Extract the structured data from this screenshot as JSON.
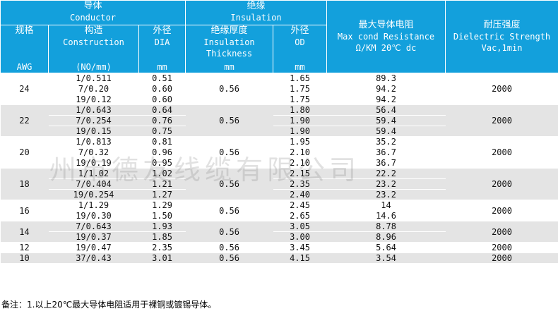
{
  "header": {
    "groups": [
      {
        "zh": "导体",
        "en": "Conductor"
      },
      {
        "zh": "绝缘",
        "en": "Insulation"
      }
    ],
    "columns": [
      {
        "zh": "规格",
        "unit": "AWG"
      },
      {
        "zh": "构造",
        "en": "Construction",
        "unit": "(NO/mm)"
      },
      {
        "zh": "外径",
        "en": "DIA",
        "unit": "mm"
      },
      {
        "zh": "绝缘厚度",
        "en": "Insulation Thickness",
        "unit": "mm"
      },
      {
        "zh": "外径",
        "en": "OD",
        "unit": "mm"
      },
      {
        "zh": "最大导体电阻",
        "en": "Max cond Resistance",
        "unit": "Ω/KM 20℃ dc"
      },
      {
        "zh": "耐压强度",
        "en": "Dielectric Strength",
        "unit": "Vac,1min"
      }
    ]
  },
  "table": {
    "groups": [
      {
        "awg": "24",
        "construction": [
          "1/0.511",
          "7/0.20",
          "19/0.12"
        ],
        "dia": [
          "0.51",
          "0.60",
          "0.60"
        ],
        "thickness": "0.56",
        "od": [
          "1.65",
          "1.75",
          "1.75"
        ],
        "resistance": [
          "89.3",
          "94.2",
          "94.2"
        ],
        "voltage": "2000"
      },
      {
        "awg": "22",
        "construction": [
          "1/0.643",
          "7/0.254",
          "19/0.15"
        ],
        "dia": [
          "0.64",
          "0.76",
          "0.75"
        ],
        "thickness": "0.56",
        "od": [
          "1.80",
          "1.90",
          "1.90"
        ],
        "resistance": [
          "56.4",
          "59.4",
          "59.4"
        ],
        "voltage": "2000"
      },
      {
        "awg": "20",
        "construction": [
          "1/0.813",
          "7/0.32",
          "19/0.19"
        ],
        "dia": [
          "0.81",
          "0.96",
          "0.95"
        ],
        "thickness": "0.56",
        "od": [
          "1.95",
          "2.10",
          "2.10"
        ],
        "resistance": [
          "35.2",
          "36.7",
          "36.7"
        ],
        "voltage": "2000"
      },
      {
        "awg": "18",
        "construction": [
          "1/1.02",
          "7/0.404",
          "19/0.254"
        ],
        "dia": [
          "1.02",
          "1.21",
          "1.27"
        ],
        "thickness": "0.56",
        "od": [
          "2.15",
          "2.35",
          "2.40"
        ],
        "resistance": [
          "22.2",
          "23.2",
          "23.2"
        ],
        "voltage": "2000"
      },
      {
        "awg": "16",
        "construction": [
          "1/1.29",
          "19/0.30"
        ],
        "dia": [
          "1.29",
          "1.50"
        ],
        "thickness": "0.56",
        "od": [
          "2.45",
          "2.65"
        ],
        "resistance": [
          "14",
          "14.6"
        ],
        "voltage": "2000"
      },
      {
        "awg": "14",
        "construction": [
          "7/0.643",
          "19/0.37"
        ],
        "dia": [
          "1.93",
          "1.85"
        ],
        "thickness": "0.56",
        "od": [
          "3.05",
          "3.00"
        ],
        "resistance": [
          "8.78",
          "8.96"
        ],
        "voltage": "2000"
      },
      {
        "awg": "12",
        "construction": [
          "19/0.47"
        ],
        "dia": [
          "2.35"
        ],
        "thickness": "0.56",
        "od": [
          "3.45"
        ],
        "resistance": [
          "5.64"
        ],
        "voltage": "2000"
      },
      {
        "awg": "10",
        "construction": [
          "37/0.43"
        ],
        "dia": [
          "3.01"
        ],
        "thickness": "0.56",
        "od": [
          "4.15"
        ],
        "resistance": [
          "3.54"
        ],
        "voltage": "2000"
      }
    ]
  },
  "watermark": "州市德友线缆有限公司",
  "note": "备注：1.以上20℃最大导体电阻适用于裸铜或镀锡导体。"
}
